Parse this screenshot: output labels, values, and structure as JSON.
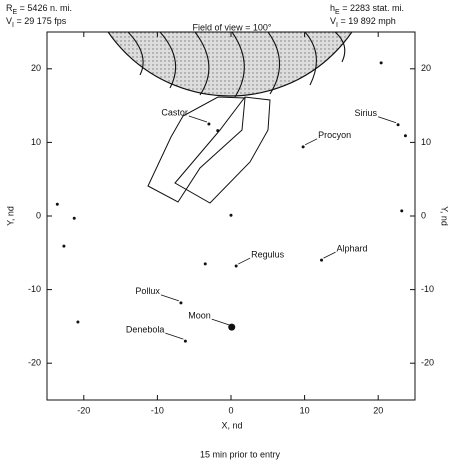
{
  "header": {
    "left": [
      {
        "symbol": "R",
        "subscript": "E",
        "text": " = 5426 n. mi."
      },
      {
        "symbol": "V",
        "subscript": "I",
        "text": " = 29 175 fps"
      }
    ],
    "right": [
      {
        "symbol": "h",
        "subscript": "E",
        "text": " = 2283 stat. mi."
      },
      {
        "symbol": "V",
        "subscript": "I",
        "text": " = 19 892 mph"
      }
    ]
  },
  "chart_data": {
    "type": "scatter",
    "annotation": "Field of view = 100°",
    "x_label": "X, nd",
    "y_label": "Y, nd",
    "xlim": [
      -25,
      25
    ],
    "ylim": [
      -25,
      25
    ],
    "xticks": [
      -20,
      -10,
      0,
      10,
      20
    ],
    "yticks": [
      -20,
      -10,
      0,
      10,
      20
    ],
    "x": [
      -3,
      9.8,
      22.7,
      12.3,
      0.7,
      -6.8,
      -6.2,
      -23.6,
      -21.3,
      -22.7,
      -20.8,
      0,
      20.4,
      23.7,
      23.2,
      -1.8,
      -3.5
    ],
    "y": [
      12.5,
      9.4,
      12.4,
      -6,
      -6.8,
      -11.8,
      -17,
      1.6,
      -0.3,
      -4.1,
      -14.4,
      0.1,
      20.8,
      10.9,
      0.7,
      11.6,
      -6.5
    ],
    "labels": [
      "Castor",
      "Procyon",
      "Sirius",
      "Alphard",
      "Regulus",
      "Pollux",
      "Denebola",
      null,
      null,
      null,
      null,
      null,
      null,
      null,
      null,
      null,
      null
    ],
    "moon": {
      "label": "Moon",
      "x": 0.1,
      "y": -15.1
    },
    "color": "#111"
  },
  "caption": "15 min prior to entry"
}
